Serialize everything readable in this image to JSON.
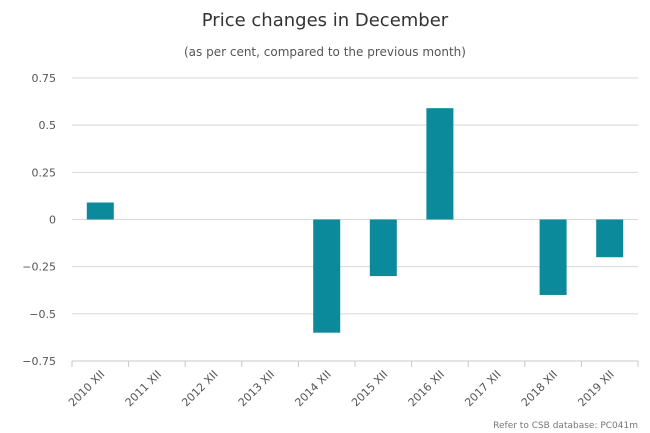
{
  "chart_data": {
    "type": "bar",
    "title": "Price changes in December",
    "subtitle": "(as per cent, compared to the previous month)",
    "categories": [
      "2010 XII",
      "2011 XII",
      "2012 XII",
      "2013 XII",
      "2014 XII",
      "2015 XII",
      "2016 XII",
      "2017 XII",
      "2018 XII",
      "2019 XII"
    ],
    "values": [
      0.09,
      0,
      0,
      0,
      -0.6,
      -0.3,
      0.59,
      0,
      -0.4,
      -0.2
    ],
    "ylim": [
      -0.75,
      0.75
    ],
    "yticks": [
      "0.75",
      "0.5",
      "0.25",
      "0",
      "−0.25",
      "−0.5",
      "−0.75"
    ],
    "ytick_values": [
      0.75,
      0.5,
      0.25,
      0,
      -0.25,
      -0.5,
      -0.75
    ],
    "grid": true,
    "bar_color": "#0b8a9c",
    "credit": "Refer to CSB database: PC041m"
  }
}
